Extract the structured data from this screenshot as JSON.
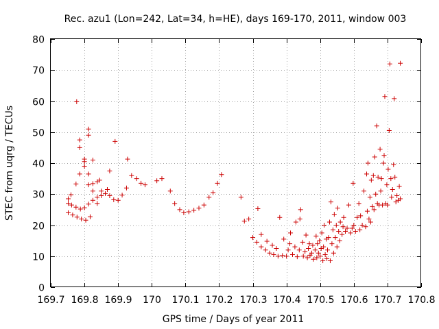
{
  "chart_data": {
    "type": "scatter",
    "title": "Rec. azu1 (Lon=242, Lat=34, h=HE), days 169-170, 2011, window 003",
    "xlabel": "GPS time / Days of year 2011",
    "ylabel": "STEC from uqrg / TECUs",
    "xlim": [
      169.7,
      170.8
    ],
    "ylim": [
      0,
      80
    ],
    "xticks": [
      169.7,
      169.8,
      169.9,
      170.0,
      170.1,
      170.2,
      170.3,
      170.4,
      170.5,
      170.6,
      170.7,
      170.8
    ],
    "xtick_labels": [
      "169.7",
      "169.8",
      "169.9",
      "170",
      "170.1",
      "170.2",
      "170.3",
      "170.4",
      "170.5",
      "170.6",
      "170.7",
      "170.8"
    ],
    "yticks": [
      0,
      10,
      20,
      30,
      40,
      50,
      60,
      70,
      80
    ],
    "ytick_labels": [
      "0",
      "10",
      "20",
      "30",
      "40",
      "50",
      "60",
      "70",
      "80"
    ],
    "grid": true,
    "marker": "+",
    "color": "#cc0000",
    "points": [
      [
        169.752,
        24.0
      ],
      [
        169.765,
        23.3
      ],
      [
        169.778,
        22.6
      ],
      [
        169.791,
        22.0
      ],
      [
        169.804,
        21.6
      ],
      [
        169.817,
        22.7
      ],
      [
        169.752,
        27.0
      ],
      [
        169.762,
        26.5
      ],
      [
        169.775,
        25.8
      ],
      [
        169.788,
        25.2
      ],
      [
        169.8,
        25.6
      ],
      [
        169.812,
        26.8
      ],
      [
        169.825,
        28.0
      ],
      [
        169.838,
        29.0
      ],
      [
        169.752,
        28.5
      ],
      [
        169.76,
        29.8
      ],
      [
        169.775,
        33.3
      ],
      [
        169.786,
        36.5
      ],
      [
        169.8,
        39.0
      ],
      [
        169.812,
        33.0
      ],
      [
        169.825,
        33.4
      ],
      [
        169.838,
        34.0
      ],
      [
        169.85,
        31.0
      ],
      [
        169.862,
        30.2
      ],
      [
        169.875,
        29.5
      ],
      [
        169.887,
        28.2
      ],
      [
        169.9,
        28.0
      ],
      [
        169.912,
        29.7
      ],
      [
        169.786,
        45.0
      ],
      [
        169.786,
        47.5
      ],
      [
        169.8,
        40.5
      ],
      [
        169.8,
        41.3
      ],
      [
        169.812,
        49.0
      ],
      [
        169.812,
        51.0
      ],
      [
        169.812,
        36.5
      ],
      [
        169.825,
        41.0
      ],
      [
        169.825,
        31.0
      ],
      [
        169.838,
        27.0
      ],
      [
        169.845,
        34.5
      ],
      [
        169.85,
        29.5
      ],
      [
        169.868,
        31.5
      ],
      [
        169.875,
        37.5
      ],
      [
        169.777,
        59.8
      ],
      [
        169.891,
        47.0
      ],
      [
        169.925,
        32.0
      ],
      [
        169.928,
        41.3
      ],
      [
        169.94,
        36.0
      ],
      [
        169.955,
        35.0
      ],
      [
        169.968,
        33.5
      ],
      [
        169.98,
        33.0
      ],
      [
        170.015,
        34.3
      ],
      [
        170.03,
        35.0
      ],
      [
        170.055,
        31.0
      ],
      [
        170.068,
        27.0
      ],
      [
        170.083,
        25.0
      ],
      [
        170.095,
        24.0
      ],
      [
        170.11,
        24.3
      ],
      [
        170.125,
        24.8
      ],
      [
        170.14,
        25.5
      ],
      [
        170.155,
        26.5
      ],
      [
        170.17,
        29.0
      ],
      [
        170.182,
        30.5
      ],
      [
        170.195,
        33.5
      ],
      [
        170.207,
        36.3
      ],
      [
        170.265,
        29.0
      ],
      [
        170.275,
        21.3
      ],
      [
        170.288,
        22.0
      ],
      [
        170.3,
        16.0
      ],
      [
        170.312,
        14.5
      ],
      [
        170.315,
        25.3
      ],
      [
        170.325,
        13.0
      ],
      [
        170.325,
        17.0
      ],
      [
        170.338,
        12.0
      ],
      [
        170.342,
        14.8
      ],
      [
        170.35,
        11.0
      ],
      [
        170.358,
        13.5
      ],
      [
        170.362,
        10.5
      ],
      [
        170.37,
        12.5
      ],
      [
        170.375,
        10.0
      ],
      [
        170.38,
        22.5
      ],
      [
        170.388,
        10.2
      ],
      [
        170.392,
        15.5
      ],
      [
        170.4,
        10.0
      ],
      [
        170.405,
        12.0
      ],
      [
        170.41,
        14.0
      ],
      [
        170.412,
        17.5
      ],
      [
        170.418,
        10.5
      ],
      [
        170.425,
        13.0
      ],
      [
        170.428,
        21.0
      ],
      [
        170.432,
        9.8
      ],
      [
        170.438,
        12.0
      ],
      [
        170.44,
        22.0
      ],
      [
        170.442,
        25.0
      ],
      [
        170.448,
        14.5
      ],
      [
        170.45,
        10.0
      ],
      [
        170.455,
        11.5
      ],
      [
        170.458,
        16.8
      ],
      [
        170.462,
        9.5
      ],
      [
        170.465,
        12.5
      ],
      [
        170.468,
        14.0
      ],
      [
        170.47,
        10.3
      ],
      [
        170.475,
        11.0
      ],
      [
        170.478,
        13.5
      ],
      [
        170.48,
        9.0
      ],
      [
        170.485,
        12.0
      ],
      [
        170.488,
        16.5
      ],
      [
        170.49,
        9.5
      ],
      [
        170.492,
        14.0
      ],
      [
        170.495,
        11.0
      ],
      [
        170.498,
        15.0
      ],
      [
        170.5,
        10.0
      ],
      [
        170.503,
        12.5
      ],
      [
        170.505,
        17.5
      ],
      [
        170.508,
        8.5
      ],
      [
        170.51,
        13.0
      ],
      [
        170.512,
        20.0
      ],
      [
        170.515,
        10.5
      ],
      [
        170.518,
        15.5
      ],
      [
        170.52,
        9.2
      ],
      [
        170.522,
        12.0
      ],
      [
        170.525,
        16.0
      ],
      [
        170.528,
        21.0
      ],
      [
        170.53,
        8.5
      ],
      [
        170.532,
        27.5
      ],
      [
        170.535,
        14.0
      ],
      [
        170.538,
        18.5
      ],
      [
        170.54,
        11.0
      ],
      [
        170.542,
        23.5
      ],
      [
        170.545,
        16.0
      ],
      [
        170.548,
        20.0
      ],
      [
        170.55,
        13.0
      ],
      [
        170.552,
        25.5
      ],
      [
        170.555,
        18.0
      ],
      [
        170.558,
        15.0
      ],
      [
        170.56,
        21.0
      ],
      [
        170.565,
        17.0
      ],
      [
        170.568,
        19.5
      ],
      [
        170.57,
        22.5
      ],
      [
        170.575,
        18.0
      ],
      [
        170.58,
        19.0
      ],
      [
        170.585,
        26.5
      ],
      [
        170.59,
        17.5
      ],
      [
        170.595,
        19.0
      ],
      [
        170.598,
        33.5
      ],
      [
        170.6,
        20.0
      ],
      [
        170.605,
        18.0
      ],
      [
        170.61,
        22.5
      ],
      [
        170.615,
        27.0
      ],
      [
        170.618,
        18.5
      ],
      [
        170.62,
        23.0
      ],
      [
        170.625,
        20.0
      ],
      [
        170.63,
        31.0
      ],
      [
        170.635,
        19.5
      ],
      [
        170.638,
        36.5
      ],
      [
        170.64,
        24.5
      ],
      [
        170.642,
        40.0
      ],
      [
        170.645,
        22.0
      ],
      [
        170.648,
        29.0
      ],
      [
        170.65,
        21.0
      ],
      [
        170.652,
        34.5
      ],
      [
        170.655,
        26.0
      ],
      [
        170.658,
        36.0
      ],
      [
        170.66,
        25.0
      ],
      [
        170.662,
        42.0
      ],
      [
        170.665,
        30.0
      ],
      [
        170.668,
        52.0
      ],
      [
        170.67,
        27.0
      ],
      [
        170.672,
        35.5
      ],
      [
        170.675,
        26.5
      ],
      [
        170.678,
        44.5
      ],
      [
        170.68,
        31.0
      ],
      [
        170.682,
        35.0
      ],
      [
        170.685,
        26.5
      ],
      [
        170.688,
        40.0
      ],
      [
        170.69,
        42.5
      ],
      [
        170.692,
        61.5
      ],
      [
        170.695,
        27.0
      ],
      [
        170.698,
        33.0
      ],
      [
        170.7,
        26.5
      ],
      [
        170.702,
        38.0
      ],
      [
        170.705,
        50.5
      ],
      [
        170.707,
        72.0
      ],
      [
        170.71,
        35.0
      ],
      [
        170.712,
        29.0
      ],
      [
        170.715,
        31.5
      ],
      [
        170.718,
        39.5
      ],
      [
        170.72,
        60.8
      ],
      [
        170.722,
        35.5
      ],
      [
        170.725,
        27.5
      ],
      [
        170.728,
        29.5
      ],
      [
        170.732,
        28.0
      ],
      [
        170.735,
        32.5
      ],
      [
        170.738,
        72.2
      ],
      [
        170.738,
        28.5
      ]
    ]
  }
}
